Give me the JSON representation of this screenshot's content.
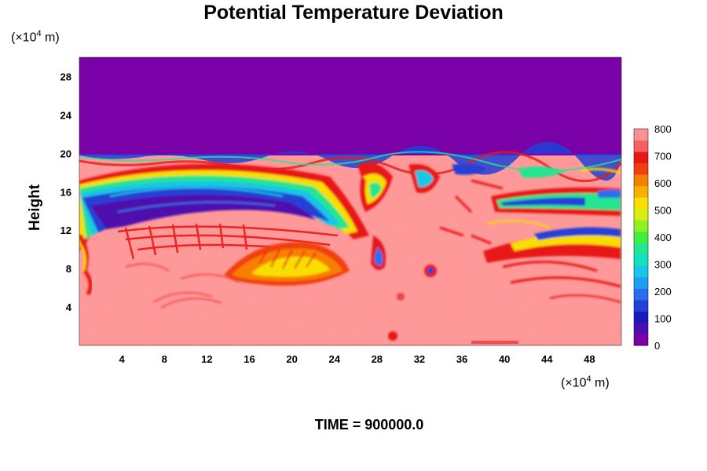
{
  "chart_data": {
    "type": "heatmap",
    "title": "Potential Temperature Deviation",
    "ylabel": "Height",
    "x_unit_prefix": "(×10",
    "x_unit_exp": "4",
    "x_unit_suffix": " m)",
    "y_unit_prefix": "(×10",
    "y_unit_exp": "4",
    "y_unit_suffix": " m)",
    "xlim": [
      0,
      51
    ],
    "ylim": [
      0,
      30
    ],
    "x_ticks": [
      4,
      8,
      12,
      16,
      20,
      24,
      28,
      32,
      36,
      40,
      44,
      48
    ],
    "y_ticks": [
      4,
      8,
      12,
      16,
      20,
      24,
      28
    ],
    "colorbar": {
      "min": 0,
      "max": 800,
      "ticks": [
        0,
        100,
        200,
        300,
        400,
        500,
        600,
        700,
        800
      ],
      "colors": [
        "#7a00a8",
        "#4b0fb0",
        "#1a1ab8",
        "#2040d8",
        "#2a6ef0",
        "#1e9ef5",
        "#16c8e8",
        "#12e0c0",
        "#20e890",
        "#40ee40",
        "#90f020",
        "#d8f010",
        "#f8e000",
        "#f8b000",
        "#f88000",
        "#f04010",
        "#e81818",
        "#f86060",
        "#ff9090"
      ]
    },
    "time_label": "TIME = 900000.0"
  }
}
